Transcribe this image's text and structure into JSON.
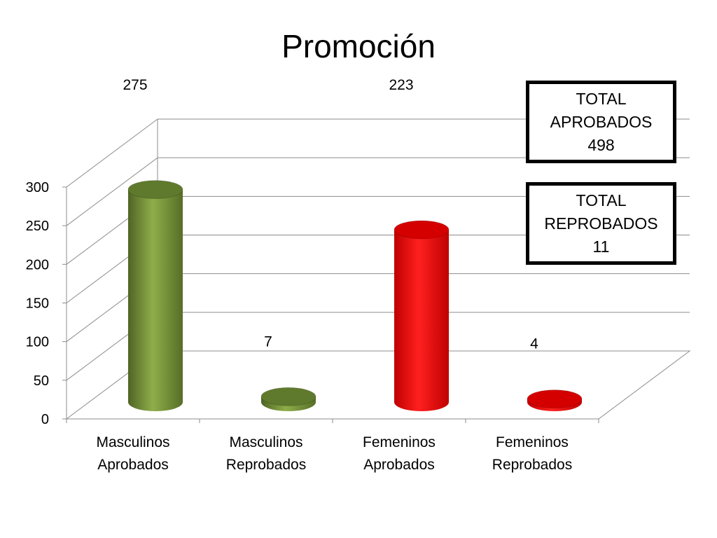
{
  "chart_data": {
    "type": "bar",
    "title": "Promoción",
    "categories": [
      [
        "Masculinos",
        "Aprobados"
      ],
      [
        "Masculinos",
        "Reprobados"
      ],
      [
        "Femeninos",
        "Aprobados"
      ],
      [
        "Femeninos",
        "Reprobados"
      ]
    ],
    "values": [
      275,
      7,
      223,
      4
    ],
    "data_labels": [
      "275",
      "7",
      "223",
      "4"
    ],
    "colors": [
      "#77933c",
      "#77933c",
      "#ff0000",
      "#ff0000"
    ],
    "ylim": [
      0,
      300
    ],
    "yticks": [
      0,
      50,
      100,
      150,
      200,
      250,
      300
    ],
    "grid": true,
    "shape": "3d-cylinder"
  },
  "summary": {
    "approved": {
      "line1": "TOTAL",
      "line2": "APROBADOS",
      "value": "498"
    },
    "failed": {
      "line1": "TOTAL",
      "line2": "REPROBADOS",
      "value": "11"
    }
  }
}
